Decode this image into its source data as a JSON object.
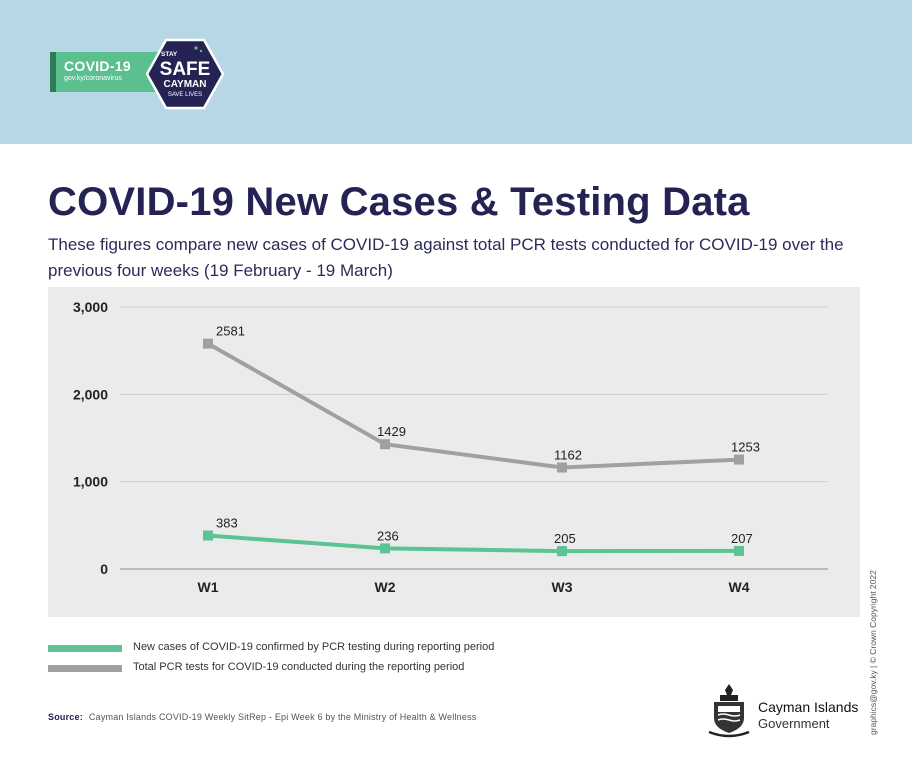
{
  "header": {
    "badge_title": "COVID-19",
    "badge_url": "gov.ky/coronavirus",
    "logo_stay": "STAY",
    "logo_safe": "SAFE",
    "logo_cayman": "CAYMAN",
    "logo_save": "SAVE LIVES",
    "colors": {
      "band": "#b7d7e6",
      "badge": "#5bbf8f",
      "hexagon": "#252254"
    }
  },
  "title": "COVID-19 New Cases & Testing Data",
  "subtitle": "These figures compare new cases of COVID-19 against total PCR tests conducted for COVID-19 over the previous four weeks (19 February - 19 March)",
  "chart_data": {
    "type": "line",
    "categories": [
      "W1",
      "W2",
      "W3",
      "W4"
    ],
    "ylim": [
      0,
      3000
    ],
    "yticks": [
      0,
      1000,
      2000,
      3000
    ],
    "ytick_labels": [
      "0",
      "1,000",
      "2,000",
      "3,000"
    ],
    "grid": true,
    "legend_position": "bottom-left",
    "series": [
      {
        "name": "Total PCR tests for COVID-19 conducted during the reporting period",
        "values": [
          2581,
          1429,
          1162,
          1253
        ],
        "labels": [
          "2581",
          "1429",
          "1162",
          "1253"
        ],
        "color": "#a0a0a0"
      },
      {
        "name": "New cases  of COVID-19 confirmed by PCR testing  during reporting period",
        "values": [
          383,
          236,
          205,
          207
        ],
        "labels": [
          "383",
          "236",
          "205",
          "207"
        ],
        "color": "#5bc394"
      }
    ]
  },
  "legend": [
    {
      "label": "New cases  of COVID-19 confirmed by PCR testing  during reporting period",
      "color": "#5bc394"
    },
    {
      "label": "Total PCR tests for COVID-19 conducted during the reporting period",
      "color": "#a0a0a0"
    }
  ],
  "source_label": "Source:",
  "source_text": "Cayman Islands COVID-19 Weekly SitRep - Epi Week 6 by the Ministry of Health & Wellness",
  "government": {
    "name": "Cayman Islands",
    "sub": "Government"
  },
  "credit": "graphics@gov.ky | © Crown Copyright 2022"
}
